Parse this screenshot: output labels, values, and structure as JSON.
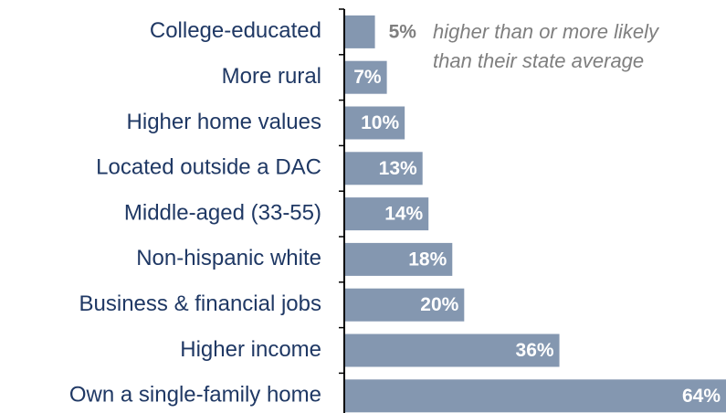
{
  "chart_data": {
    "type": "bar",
    "orientation": "horizontal",
    "categories": [
      "College-educated",
      "More rural",
      "Higher home values",
      "Located outside a DAC",
      "Middle-aged (33-55)",
      "Non-hispanic white",
      "Business & financial jobs",
      "Higher income",
      "Own a single-family home"
    ],
    "values": [
      5,
      7,
      10,
      13,
      14,
      18,
      20,
      36,
      64
    ],
    "value_labels": [
      "5%",
      "7%",
      "10%",
      "13%",
      "14%",
      "18%",
      "20%",
      "36%",
      "64%"
    ],
    "color": "#8497b0",
    "annotation": [
      "higher than or more likely",
      "than their state average"
    ]
  }
}
